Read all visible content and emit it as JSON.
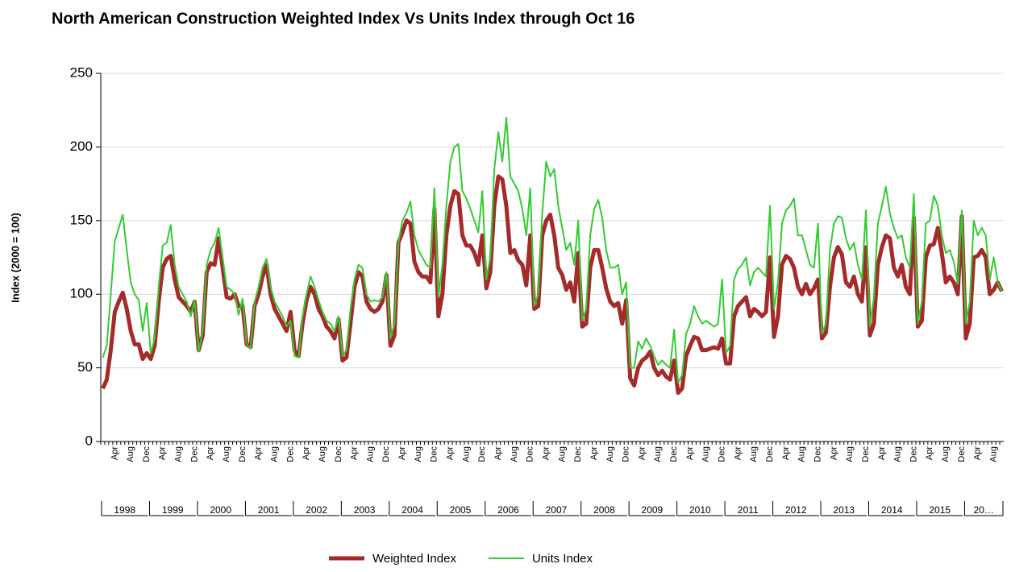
{
  "chart_data": {
    "type": "line",
    "title": "North American Construction Weighted Index Vs Units Index through Oct 16",
    "ylabel": "Index (2000 = 100)",
    "ylim": [
      0,
      250
    ],
    "yticks": [
      0,
      50,
      100,
      150,
      200,
      250
    ],
    "grid": true,
    "legend": "bottom",
    "year_labels": [
      "1998",
      "1999",
      "2000",
      "2001",
      "2002",
      "2003",
      "2004",
      "2005",
      "2006",
      "2007",
      "2008",
      "2009",
      "2010",
      "2011",
      "2012",
      "2013",
      "2014",
      "2015",
      "20…"
    ],
    "categories": [
      null,
      null,
      null,
      "Apr",
      null,
      null,
      null,
      "Aug",
      null,
      null,
      null,
      "Dec",
      null,
      null,
      null,
      "Apr",
      null,
      null,
      null,
      "Aug",
      null,
      null,
      null,
      "Dec",
      null,
      null,
      null,
      "Apr",
      null,
      null,
      null,
      "Aug",
      null,
      null,
      null,
      "Dec",
      null,
      null,
      null,
      "Apr",
      null,
      null,
      null,
      "Aug",
      null,
      null,
      null,
      "Dec",
      null,
      null,
      null,
      "Apr",
      null,
      null,
      null,
      "Aug",
      null,
      null,
      null,
      "Dec",
      null,
      null,
      null,
      "Apr",
      null,
      null,
      null,
      "Aug",
      null,
      null,
      null,
      "Dec",
      null,
      null,
      null,
      "Apr",
      null,
      null,
      null,
      "Aug",
      null,
      null,
      null,
      "Dec",
      null,
      null,
      null,
      "Apr",
      null,
      null,
      null,
      "Aug",
      null,
      null,
      null,
      "Dec",
      null,
      null,
      null,
      "Apr",
      null,
      null,
      null,
      "Aug",
      null,
      null,
      null,
      "Dec",
      null,
      null,
      null,
      "Apr",
      null,
      null,
      null,
      "Aug",
      null,
      null,
      null,
      "Dec",
      null,
      null,
      null,
      "Apr",
      null,
      null,
      null,
      "Aug",
      null,
      null,
      null,
      "Dec",
      null,
      null,
      null,
      "Apr",
      null,
      null,
      null,
      "Aug",
      null,
      null,
      null,
      "Dec",
      null,
      null,
      null,
      "Apr",
      null,
      null,
      null,
      "Aug",
      null,
      null,
      null,
      "Dec",
      null,
      null,
      null,
      "Apr",
      null,
      null,
      null,
      "Aug",
      null,
      null,
      null,
      "Dec",
      null,
      null,
      null,
      "Apr",
      null,
      null,
      null,
      "Aug",
      null,
      null,
      null,
      "Dec",
      null,
      null,
      null,
      "Apr",
      null,
      null,
      null,
      "Aug",
      null,
      null,
      null,
      "Dec",
      null,
      null,
      null,
      "Apr",
      null,
      null,
      null,
      "Aug",
      null,
      null,
      null,
      "Dec",
      null,
      null,
      null,
      "Apr",
      null,
      null,
      null,
      "Aug",
      null,
      null,
      null,
      "Dec",
      null,
      null,
      null,
      "Apr",
      null,
      null,
      null,
      "Aug",
      null,
      null
    ],
    "series": [
      {
        "name": "Weighted Index",
        "color": "#a52a2a",
        "width": 5,
        "values": [
          36,
          42,
          62,
          88,
          95,
          101,
          90,
          75,
          66,
          66,
          56,
          60,
          56,
          65,
          95,
          118,
          124,
          126,
          110,
          98,
          95,
          92,
          88,
          95,
          62,
          72,
          115,
          121,
          120,
          138,
          118,
          98,
          97,
          100,
          92,
          92,
          66,
          64,
          92,
          100,
          112,
          120,
          100,
          90,
          85,
          80,
          75,
          88,
          62,
          58,
          80,
          96,
          105,
          100,
          90,
          85,
          78,
          75,
          70,
          83,
          55,
          57,
          80,
          105,
          115,
          112,
          95,
          90,
          88,
          90,
          95,
          113,
          65,
          72,
          135,
          142,
          150,
          148,
          122,
          115,
          112,
          112,
          108,
          158,
          85,
          100,
          140,
          160,
          170,
          168,
          140,
          133,
          133,
          128,
          120,
          140,
          104,
          115,
          160,
          180,
          178,
          160,
          128,
          130,
          123,
          120,
          106,
          140,
          90,
          92,
          140,
          150,
          154,
          140,
          118,
          113,
          103,
          108,
          95,
          128,
          78,
          80,
          118,
          130,
          130,
          118,
          104,
          95,
          92,
          94,
          80,
          96,
          43,
          38,
          50,
          55,
          57,
          61,
          50,
          45,
          48,
          44,
          42,
          55,
          33,
          36,
          58,
          65,
          71,
          70,
          62,
          62,
          63,
          64,
          63,
          70,
          53,
          53,
          85,
          92,
          95,
          98,
          85,
          90,
          88,
          85,
          88,
          125,
          71,
          85,
          120,
          126,
          124,
          118,
          105,
          100,
          107,
          100,
          104,
          110,
          70,
          74,
          105,
          125,
          132,
          127,
          108,
          105,
          112,
          100,
          95,
          132,
          72,
          80,
          120,
          132,
          140,
          138,
          118,
          112,
          120,
          105,
          100,
          152,
          78,
          82,
          125,
          133,
          134,
          145,
          128,
          108,
          112,
          108,
          100,
          153,
          70,
          80,
          125,
          126,
          130,
          125,
          100,
          103,
          108,
          102
        ]
      },
      {
        "name": "Units Index",
        "color": "#33cc33",
        "width": 2,
        "values": [
          57,
          65,
          100,
          136,
          145,
          154,
          130,
          108,
          100,
          96,
          75,
          94,
          60,
          70,
          105,
          133,
          135,
          147,
          120,
          105,
          100,
          95,
          85,
          96,
          61,
          75,
          120,
          130,
          135,
          145,
          125,
          105,
          103,
          100,
          86,
          97,
          66,
          63,
          95,
          105,
          118,
          124,
          105,
          95,
          90,
          85,
          78,
          82,
          58,
          57,
          85,
          100,
          112,
          105,
          96,
          88,
          82,
          80,
          75,
          85,
          58,
          62,
          90,
          110,
          120,
          118,
          100,
          95,
          96,
          95,
          98,
          115,
          70,
          80,
          135,
          150,
          155,
          163,
          140,
          130,
          125,
          120,
          118,
          172,
          98,
          120,
          160,
          190,
          200,
          202,
          170,
          165,
          158,
          150,
          142,
          170,
          110,
          125,
          185,
          210,
          190,
          220,
          180,
          175,
          170,
          158,
          140,
          172,
          92,
          100,
          155,
          190,
          180,
          185,
          160,
          145,
          130,
          135,
          120,
          150,
          82,
          90,
          140,
          158,
          164,
          152,
          130,
          118,
          118,
          120,
          100,
          108,
          50,
          50,
          68,
          63,
          70,
          65,
          58,
          52,
          55,
          52,
          50,
          76,
          40,
          45,
          73,
          80,
          92,
          85,
          80,
          82,
          80,
          78,
          80,
          110,
          60,
          65,
          110,
          117,
          120,
          125,
          106,
          115,
          118,
          115,
          112,
          160,
          90,
          108,
          148,
          157,
          160,
          165,
          140,
          140,
          130,
          120,
          118,
          148,
          73,
          80,
          130,
          148,
          153,
          152,
          138,
          130,
          135,
          120,
          110,
          157,
          78,
          98,
          148,
          160,
          173,
          155,
          145,
          138,
          140,
          125,
          118,
          168,
          80,
          95,
          148,
          150,
          167,
          160,
          140,
          128,
          130,
          122,
          107,
          157,
          80,
          95,
          150,
          140,
          145,
          140,
          110,
          125,
          108,
          102
        ]
      }
    ]
  }
}
